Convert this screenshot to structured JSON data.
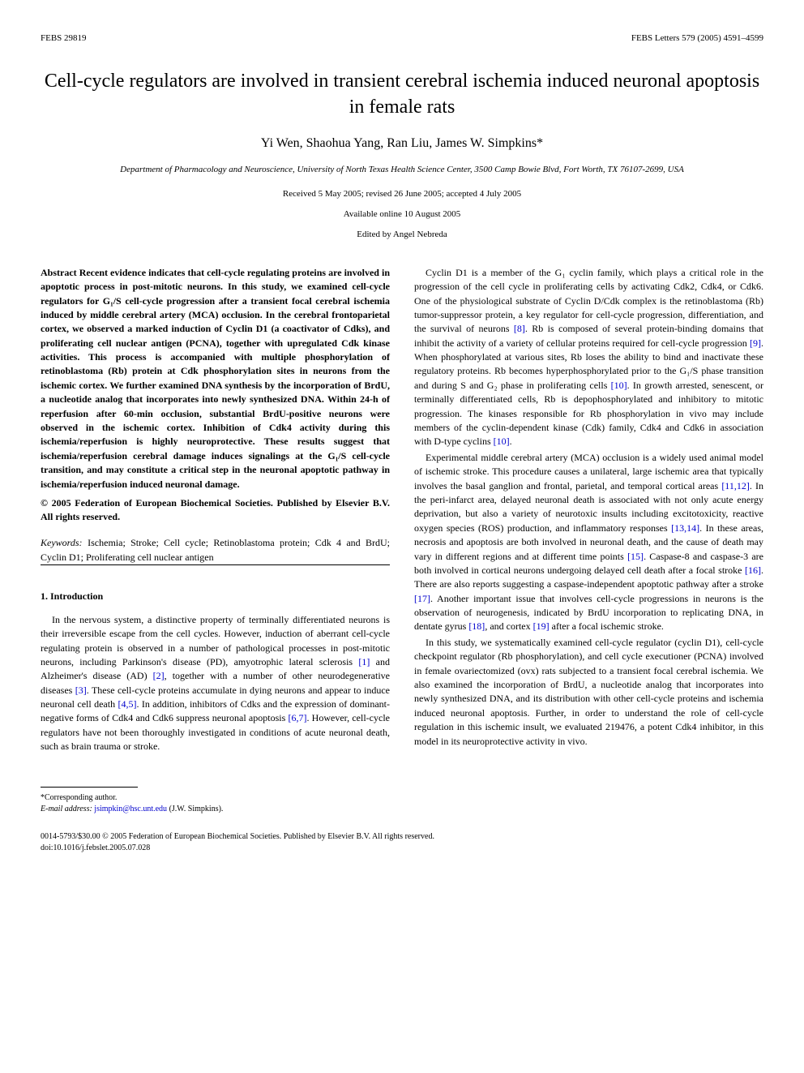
{
  "header": {
    "left": "FEBS 29819",
    "right": "FEBS Letters 579 (2005) 4591–4599"
  },
  "title": "Cell-cycle regulators are involved in transient cerebral ischemia induced neuronal apoptosis in female rats",
  "authors": "Yi Wen, Shaohua Yang, Ran Liu, James W. Simpkins*",
  "affiliation": "Department of Pharmacology and Neuroscience, University of North Texas Health Science Center, 3500 Camp Bowie Blvd, Fort Worth, TX 76107-2699, USA",
  "dates": "Received 5 May 2005; revised 26 June 2005; accepted 4 July 2005",
  "available": "Available online 10 August 2005",
  "editor": "Edited by Angel Nebreda",
  "abstract": "Abstract   Recent evidence indicates that cell-cycle regulating proteins are involved in apoptotic process in post-mitotic neurons. In this study, we examined cell-cycle regulators for G₁/S cell-cycle progression after a transient focal cerebral ischemia induced by middle cerebral artery (MCA) occlusion. In the cerebral frontoparietal cortex, we observed a marked induction of Cyclin D1 (a coactivator of Cdks), and proliferating cell nuclear antigen (PCNA), together with upregulated Cdk kinase activities. This process is accompanied with multiple phosphorylation of retinoblastoma (Rb) protein at Cdk phosphorylation sites in neurons from the ischemic cortex. We further examined DNA synthesis by the incorporation of BrdU, a nucleotide analog that incorporates into newly synthesized DNA. Within 24-h of reperfusion after 60-min occlusion, substantial BrdU-positive neurons were observed in the ischemic cortex. Inhibition of Cdk4 activity during this ischemia/reperfusion is highly neuroprotective. These results suggest that ischemia/reperfusion cerebral damage induces signalings at the G₁/S cell-cycle transition, and may constitute a critical step in the neuronal apoptotic pathway in ischemia/reperfusion induced neuronal damage.",
  "copyright": "© 2005 Federation of European Biochemical Societies. Published by Elsevier B.V. All rights reserved.",
  "keywords_label": "Keywords:",
  "keywords_text": "Ischemia; Stroke; Cell cycle; Retinoblastoma protein; Cdk 4 and BrdU; Cyclin D1; Proliferating cell nuclear antigen",
  "section1_head": "1. Introduction",
  "intro_p1_a": "In the nervous system, a distinctive property of terminally differentiated neurons is their irreversible escape from the cell cycles. However, induction of aberrant cell-cycle regulating protein is observed in a number of pathological processes in post-mitotic neurons, including Parkinson's disease (PD), amyotrophic lateral sclerosis ",
  "ref1": "[1]",
  "intro_p1_b": " and Alzheimer's disease (AD) ",
  "ref2": "[2]",
  "intro_p1_c": ", together with a number of other neurodegenerative diseases ",
  "ref3": "[3]",
  "intro_p1_d": ". These cell-cycle proteins accumulate in dying neurons and appear to induce neuronal cell death ",
  "ref45": "[4,5]",
  "intro_p1_e": ". In addition, inhibitors of Cdks and the expression of dominant-negative forms of Cdk4 and Cdk6 suppress neuronal apoptosis ",
  "ref67": "[6,7]",
  "intro_p1_f": ". However, cell-cycle regulators have not been thoroughly investigated in conditions of acute neuronal death, such as brain trauma or stroke.",
  "col2_p1_a": "Cyclin D1 is a member of the G₁ cyclin family, which plays a critical role in the progression of the cell cycle in proliferating cells by activating Cdk2, Cdk4, or Cdk6. One of the physiological substrate of Cyclin D/Cdk complex is the retinoblastoma (Rb) tumor-suppressor protein, a key regulator for cell-cycle progression, differentiation, and the survival of neurons ",
  "ref8": "[8]",
  "col2_p1_b": ". Rb is composed of several protein-binding domains that inhibit the activity of a variety of cellular proteins required for cell-cycle progression ",
  "ref9": "[9]",
  "col2_p1_c": ". When phosphorylated at various sites, Rb loses the ability to bind and inactivate these regulatory proteins. Rb becomes hyperphosphorylated prior to the G₁/S phase transition and during S and G₂ phase in proliferating cells ",
  "ref10": "[10]",
  "col2_p1_d": ". In growth arrested, senescent, or terminally differentiated cells, Rb is depophosphorylated and inhibitory to mitotic progression. The kinases responsible for Rb phosphorylation in vivo may include members of the cyclin-dependent kinase (Cdk) family, Cdk4 and Cdk6 in association with D-type cyclins ",
  "ref10b": "[10]",
  "col2_p1_e": ".",
  "col2_p2_a": "Experimental middle cerebral artery (MCA) occlusion is a widely used animal model of ischemic stroke. This procedure causes a unilateral, large ischemic area that typically involves the basal ganglion and frontal, parietal, and temporal cortical areas ",
  "ref1112": "[11,12]",
  "col2_p2_b": ". In the peri-infarct area, delayed neuronal death is associated with not only acute energy deprivation, but also a variety of neurotoxic insults including excitotoxicity, reactive oxygen species (ROS) production, and inflammatory responses ",
  "ref1314": "[13,14]",
  "col2_p2_c": ". In these areas, necrosis and apoptosis are both involved in neuronal death, and the cause of death may vary in different regions and at different time points ",
  "ref15": "[15]",
  "col2_p2_d": ". Caspase-8 and caspase-3 are both involved in cortical neurons undergoing delayed cell death after a focal stroke ",
  "ref16": "[16]",
  "col2_p2_e": ". There are also reports suggesting a caspase-independent apoptotic pathway after a stroke ",
  "ref17": "[17]",
  "col2_p2_f": ". Another important issue that involves cell-cycle progressions in neurons is the observation of neurogenesis, indicated by BrdU incorporation to replicating DNA, in dentate gyrus ",
  "ref18": "[18]",
  "col2_p2_g": ", and cortex ",
  "ref19": "[19]",
  "col2_p2_h": " after a focal ischemic stroke.",
  "col2_p3": "In this study, we systematically examined cell-cycle regulator (cyclin D1), cell-cycle checkpoint regulator (Rb phosphorylation), and cell cycle executioner (PCNA) involved in female ovariectomized (ovx) rats subjected to a transient focal cerebral ischemia. We also examined the incorporation of BrdU, a nucleotide analog that incorporates into newly synthesized DNA, and its distribution with other cell-cycle proteins and ischemia induced neuronal apoptosis. Further, in order to understand the role of cell-cycle regulation in this ischemic insult, we evaluated 219476, a potent Cdk4 inhibitor, in this model in its neuroprotective activity in vivo.",
  "footnote_corr": "*Corresponding author.",
  "footnote_email_label": "E-mail address: ",
  "footnote_email": "jsimpkin@hsc.unt.edu",
  "footnote_email_suffix": " (J.W. Simpkins).",
  "bottom_line1": "0014-5793/$30.00 © 2005 Federation of European Biochemical Societies. Published by Elsevier B.V. All rights reserved.",
  "bottom_line2": "doi:10.1016/j.febslet.2005.07.028"
}
